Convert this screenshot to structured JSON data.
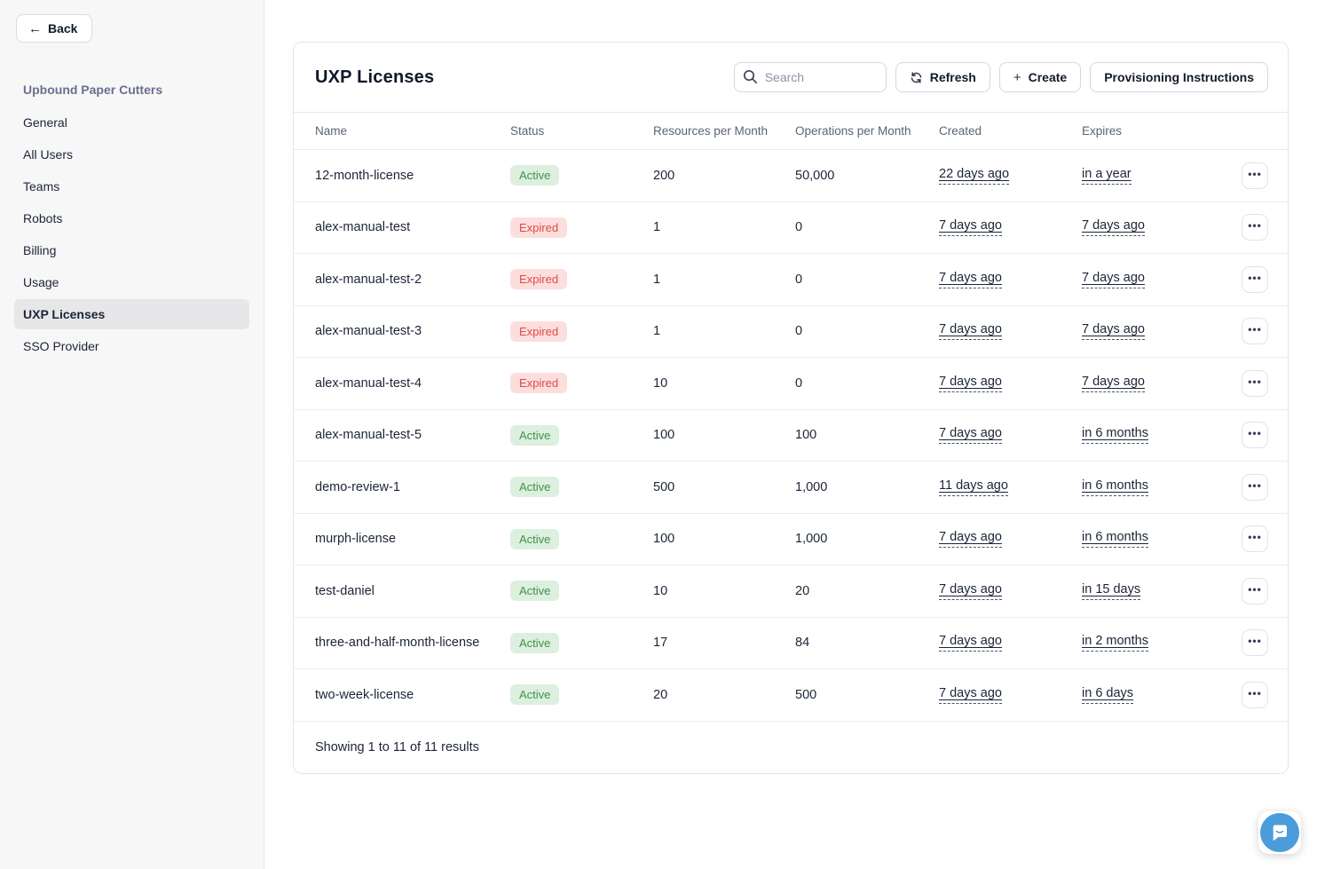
{
  "sidebar": {
    "back_label": "Back",
    "org_title": "Upbound Paper Cutters",
    "items": [
      {
        "label": "General",
        "active": false
      },
      {
        "label": "All Users",
        "active": false
      },
      {
        "label": "Teams",
        "active": false
      },
      {
        "label": "Robots",
        "active": false
      },
      {
        "label": "Billing",
        "active": false
      },
      {
        "label": "Usage",
        "active": false
      },
      {
        "label": "UXP Licenses",
        "active": true
      },
      {
        "label": "SSO Provider",
        "active": false
      }
    ]
  },
  "main": {
    "title": "UXP Licenses",
    "search": {
      "placeholder": "Search",
      "value": ""
    },
    "buttons": {
      "refresh": "Refresh",
      "create": "Create",
      "provisioning": "Provisioning Instructions"
    },
    "table": {
      "columns": [
        "Name",
        "Status",
        "Resources per Month",
        "Operations per Month",
        "Created",
        "Expires"
      ],
      "rows": [
        {
          "name": "12-month-license",
          "status": "Active",
          "resources": "200",
          "operations": "50,000",
          "created": "22 days ago",
          "expires": "in a year"
        },
        {
          "name": "alex-manual-test",
          "status": "Expired",
          "resources": "1",
          "operations": "0",
          "created": "7 days ago",
          "expires": "7 days ago"
        },
        {
          "name": "alex-manual-test-2",
          "status": "Expired",
          "resources": "1",
          "operations": "0",
          "created": "7 days ago",
          "expires": "7 days ago"
        },
        {
          "name": "alex-manual-test-3",
          "status": "Expired",
          "resources": "1",
          "operations": "0",
          "created": "7 days ago",
          "expires": "7 days ago"
        },
        {
          "name": "alex-manual-test-4",
          "status": "Expired",
          "resources": "10",
          "operations": "0",
          "created": "7 days ago",
          "expires": "7 days ago"
        },
        {
          "name": "alex-manual-test-5",
          "status": "Active",
          "resources": "100",
          "operations": "100",
          "created": "7 days ago",
          "expires": "in 6 months"
        },
        {
          "name": "demo-review-1",
          "status": "Active",
          "resources": "500",
          "operations": "1,000",
          "created": "11 days ago",
          "expires": "in 6 months"
        },
        {
          "name": "murph-license",
          "status": "Active",
          "resources": "100",
          "operations": "1,000",
          "created": "7 days ago",
          "expires": "in 6 months"
        },
        {
          "name": "test-daniel",
          "status": "Active",
          "resources": "10",
          "operations": "20",
          "created": "7 days ago",
          "expires": "in 15 days"
        },
        {
          "name": "three-and-half-month-license",
          "status": "Active",
          "resources": "17",
          "operations": "84",
          "created": "7 days ago",
          "expires": "in 2 months"
        },
        {
          "name": "two-week-license",
          "status": "Active",
          "resources": "20",
          "operations": "500",
          "created": "7 days ago",
          "expires": "in 6 days"
        }
      ],
      "footer": "Showing 1 to 11 of 11 results"
    }
  },
  "icons": {
    "back_arrow": "←",
    "plus": "+",
    "refresh": "⟳",
    "ellipsis": "•••"
  },
  "colors": {
    "status_active_bg": "#ddefdf",
    "status_active_text": "#3f9347",
    "status_expired_bg": "#fcdedd",
    "status_expired_text": "#df4b45",
    "sidebar_bg": "#f7f7f8",
    "sidebar_org_title": "#6b6e90",
    "chat_launcher_blue": "#4a9cda"
  }
}
